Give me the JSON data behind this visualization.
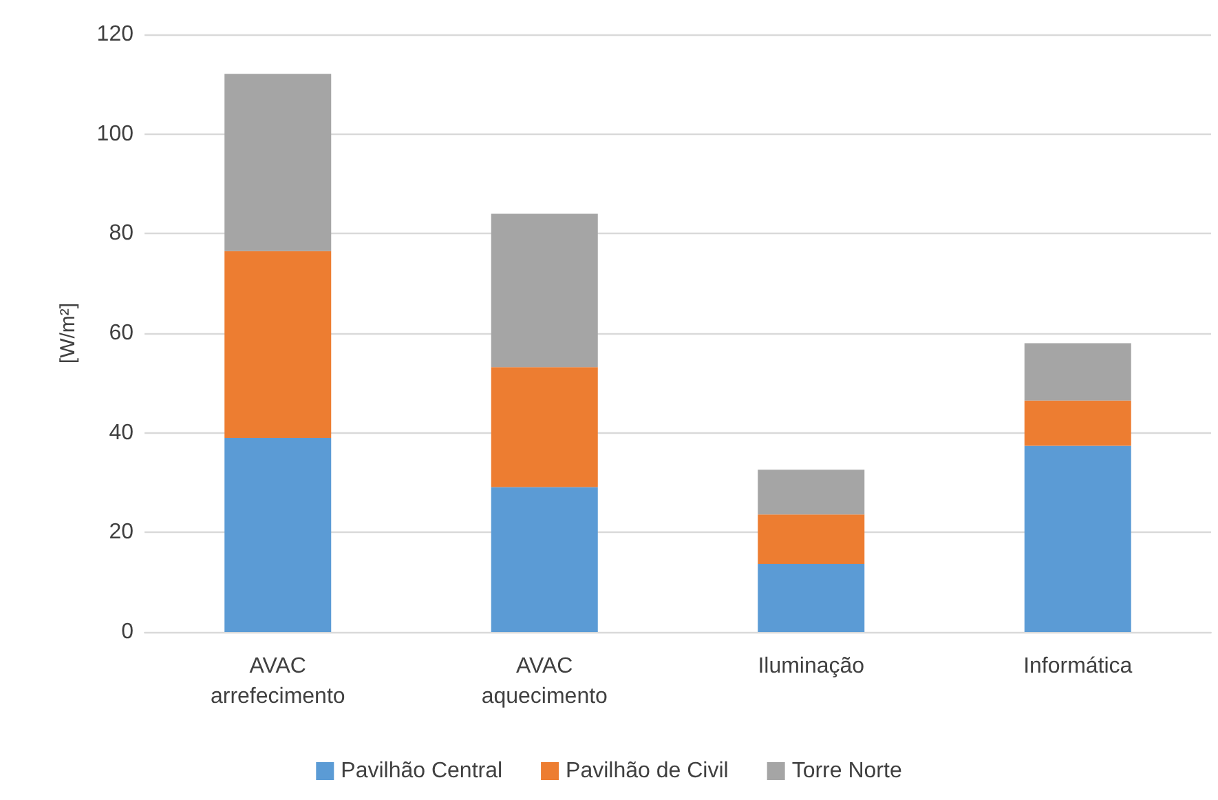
{
  "chart_data": {
    "type": "bar",
    "stacked": true,
    "ylabel": "[W/m²]",
    "categories": [
      "AVAC\narrefecimento",
      "AVAC\naquecimento",
      "Iluminação",
      "Informática"
    ],
    "series": [
      {
        "name": "Pavilhão Central",
        "color": "#5b9bd5",
        "values": [
          39.0,
          29.1,
          13.7,
          37.4
        ]
      },
      {
        "name": "Pavilhão de Civil",
        "color": "#ed7d31",
        "values": [
          37.5,
          24.1,
          9.9,
          9.1
        ]
      },
      {
        "name": "Torre Norte",
        "color": "#a5a5a5",
        "values": [
          35.6,
          30.8,
          9.0,
          11.5
        ]
      }
    ],
    "ylim": [
      0,
      120
    ],
    "yticks": [
      0,
      20,
      40,
      60,
      80,
      100,
      120
    ],
    "grid": "y",
    "legend": "bottom"
  }
}
